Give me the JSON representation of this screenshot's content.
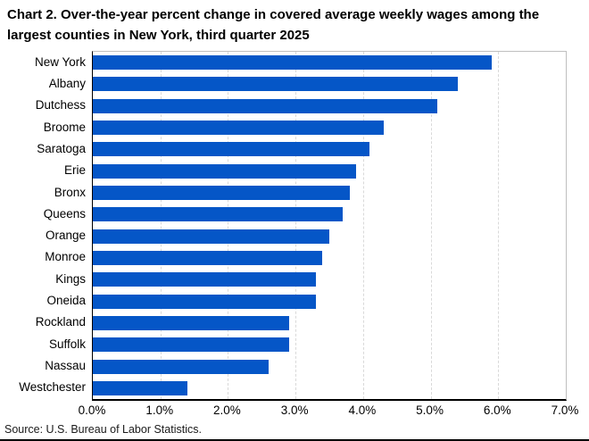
{
  "page": {
    "title_line1": "Chart 2. Over-the-year percent change in covered average weekly wages among the",
    "title_line2": "largest counties in New York, third quarter 2025"
  },
  "chart_data": {
    "type": "bar",
    "orientation": "horizontal",
    "title": "Chart 2. Over-the-year percent change in covered average weekly wages among the largest counties in New York, third quarter 2025",
    "categories": [
      "New York",
      "Albany",
      "Dutchess",
      "Broome",
      "Saratoga",
      "Erie",
      "Bronx",
      "Queens",
      "Orange",
      "Monroe",
      "Kings",
      "Oneida",
      "Rockland",
      "Suffolk",
      "Nassau",
      "Westchester"
    ],
    "values": [
      5.9,
      5.4,
      5.1,
      4.3,
      4.1,
      3.9,
      3.8,
      3.7,
      3.5,
      3.4,
      3.3,
      3.3,
      2.9,
      2.9,
      2.6,
      1.4
    ],
    "value_unit": "%",
    "xlabel": "",
    "ylabel": "",
    "xlim": [
      0,
      7
    ],
    "x_tick_labels": [
      "0.0%",
      "1.0%",
      "2.0%",
      "3.0%",
      "4.0%",
      "5.0%",
      "6.0%",
      "7.0%"
    ],
    "grid": "vertical-dashed",
    "legend": "none",
    "source": "Source: U.S. Bureau of Labor Statistics."
  },
  "colors": {
    "bar": "#0556c7",
    "gridline": "#d9d9d9",
    "plot_border": "#bfbfbf",
    "axis": "#000000",
    "text": "#000000"
  }
}
